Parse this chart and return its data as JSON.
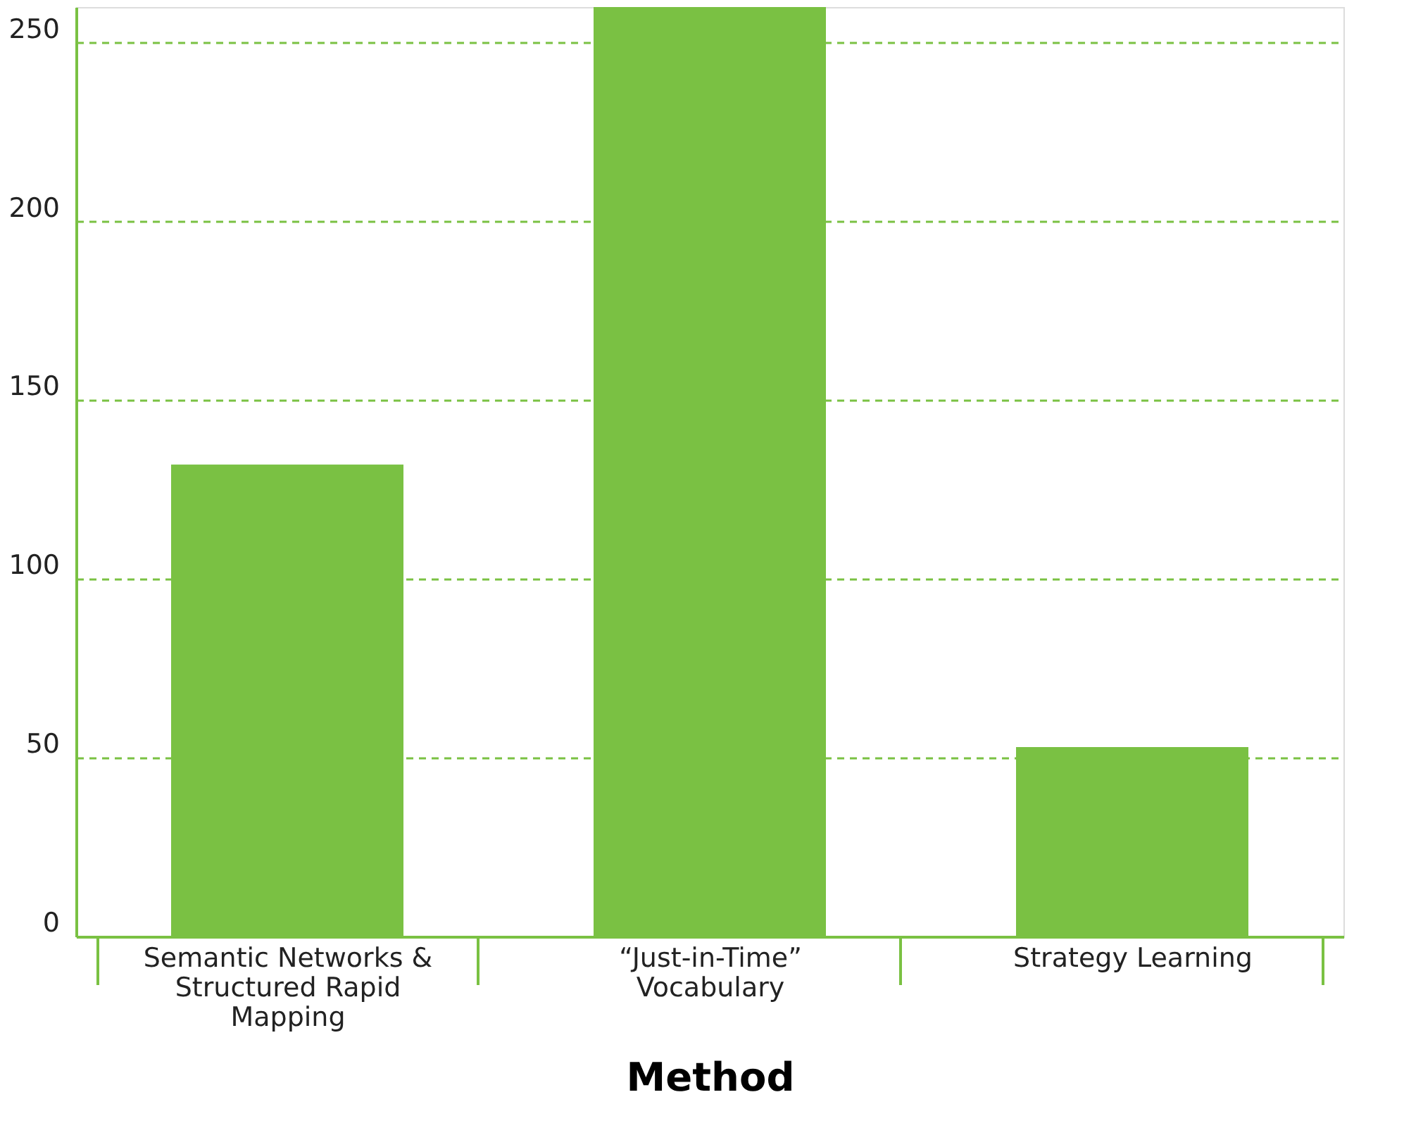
{
  "chart_data": {
    "type": "bar",
    "xlabel": "Method",
    "categories": [
      "Semantic Networks & Structured Rapid Mapping",
      "“Just-in-Time” Vocabulary",
      "Strategy Learning"
    ],
    "values": [
      132,
      260,
      53
    ],
    "color": "#7ac143",
    "ylim": [
      0,
      260
    ],
    "yticks": [
      0,
      50,
      100,
      150,
      200,
      250
    ],
    "grid": "y"
  }
}
